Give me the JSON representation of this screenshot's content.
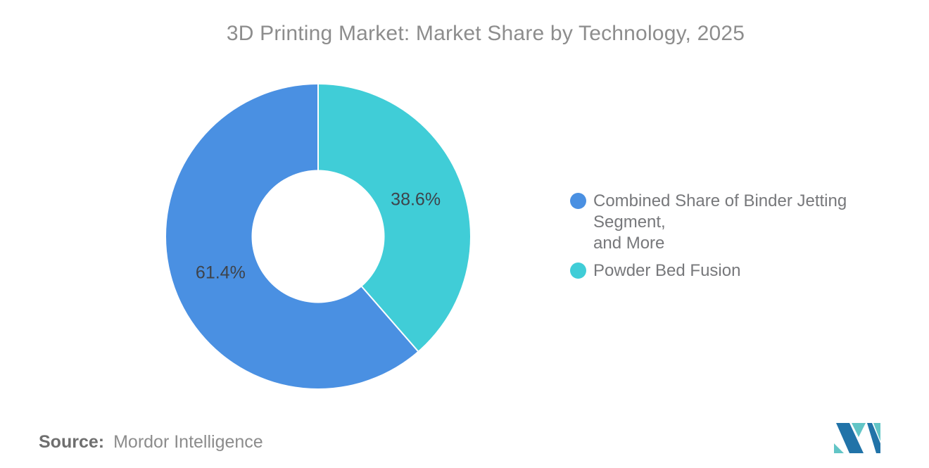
{
  "page": {
    "background": "#FFFFFF"
  },
  "title": "3D Printing Market: Market Share by Technology, 2025",
  "chart_data": {
    "type": "pie",
    "subtype": "donut",
    "title": "3D Printing Market: Market Share by Technology, 2025",
    "direction": "clockwise",
    "start_angle_deg": 0,
    "inner_radius_ratio": 0.437,
    "legend_position": "right",
    "grid": false,
    "segments": [
      {
        "label": "Powder Bed Fusion",
        "value": 38.6,
        "display": "38.6%",
        "color": "#40CDD7"
      },
      {
        "label": "Combined Share of Binder Jetting Segment, and More",
        "value": 61.4,
        "display": "61.4%",
        "color": "#4A90E2"
      }
    ],
    "label_color": "#3E434A"
  },
  "legend": {
    "items": [
      {
        "label": "Combined Share of Binder Jetting Segment,\nand More",
        "color": "#4A90E2"
      },
      {
        "label": "Powder Bed Fusion",
        "color": "#40CDD7"
      }
    ]
  },
  "source": {
    "label": "Source:",
    "value": "Mordor Intelligence"
  },
  "logo": {
    "alt": "Mordor Intelligence logo",
    "blue": "#2173A8",
    "teal": "#62C5C6"
  }
}
